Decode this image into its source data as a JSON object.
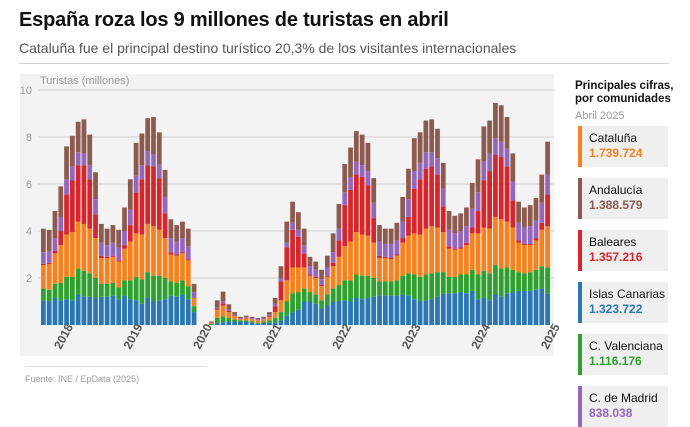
{
  "title": "España roza los 9 millones de turistas en abril",
  "subtitle": "Cataluña fue el principal destino turístico 20,3% de los visitantes internacionales",
  "source": "Fuente: INE / EpData (2025)",
  "sidebar": {
    "heading_line1": "Principales cifras,",
    "heading_line2": "por comunidades",
    "period": "Abril 2025",
    "items": [
      {
        "name": "Cataluña",
        "value": "1.739.724",
        "color": "#f5821f"
      },
      {
        "name": "Andalucía",
        "value": "1.388.579",
        "color": "#8c5a4f"
      },
      {
        "name": "Baleares",
        "value": "1.357.216",
        "color": "#d7262b"
      },
      {
        "name": "Islas Canarias",
        "value": "1.323.722",
        "color": "#2a77b4"
      },
      {
        "name": "C. Valenciana",
        "value": "1.116.176",
        "color": "#2ea02d"
      },
      {
        "name": "C. de Madrid",
        "value": "838.038",
        "color": "#9467bd"
      }
    ]
  },
  "chart_data": {
    "type": "bar",
    "stacked": true,
    "title": "España roza los 9 millones de turistas en abril",
    "ylabel": "Turistas (millones)",
    "xlabel": "",
    "ylim": [
      0,
      10
    ],
    "yticks": [
      2,
      4,
      6,
      8,
      10
    ],
    "grid": true,
    "x_start": "2018-01",
    "x_end": "2025-04",
    "xticks": [
      "2018",
      "2019",
      "2020",
      "2021",
      "2022",
      "2023",
      "2024",
      "2025"
    ],
    "series": [
      {
        "name": "Islas Canarias",
        "color": "#2a77b4",
        "values": [
          1.05,
          1.0,
          1.15,
          1.05,
          1.1,
          1.05,
          1.3,
          1.2,
          1.2,
          1.15,
          1.2,
          1.2,
          1.25,
          1.1,
          1.25,
          1.1,
          1.05,
          0.9,
          1.15,
          1.0,
          1.05,
          1.1,
          1.25,
          1.2,
          1.3,
          1.1,
          0.55,
          0.0,
          0.0,
          0.0,
          0.1,
          0.12,
          0.15,
          0.15,
          0.15,
          0.15,
          0.1,
          0.05,
          0.1,
          0.1,
          0.1,
          0.2,
          0.4,
          0.55,
          0.65,
          1.0,
          1.0,
          0.9,
          0.7,
          0.85,
          1.0,
          1.0,
          1.05,
          1.0,
          1.15,
          1.1,
          1.15,
          1.2,
          1.25,
          1.25,
          1.25,
          1.25,
          1.3,
          1.25,
          1.1,
          1.0,
          1.05,
          1.1,
          1.2,
          1.35,
          1.35,
          1.35,
          1.4,
          1.35,
          1.45,
          1.1,
          1.15,
          1.05,
          1.3,
          1.2,
          1.35,
          1.4,
          1.45,
          1.45,
          1.45,
          1.5,
          1.55,
          1.35
        ]
      },
      {
        "name": "C. Valenciana",
        "color": "#2ea02d",
        "values": [
          0.5,
          0.5,
          0.6,
          0.75,
          0.95,
          1.0,
          1.1,
          1.1,
          1.0,
          0.85,
          0.55,
          0.55,
          0.55,
          0.5,
          0.65,
          0.8,
          1.0,
          1.05,
          1.1,
          1.1,
          1.05,
          0.9,
          0.6,
          0.6,
          0.6,
          0.55,
          0.25,
          0.0,
          0.0,
          0.05,
          0.2,
          0.25,
          0.15,
          0.08,
          0.05,
          0.05,
          0.05,
          0.05,
          0.05,
          0.1,
          0.2,
          0.35,
          0.6,
          0.8,
          0.75,
          0.55,
          0.4,
          0.4,
          0.35,
          0.45,
          0.55,
          0.7,
          0.85,
          0.9,
          1.0,
          1.0,
          0.95,
          0.8,
          0.6,
          0.6,
          0.6,
          0.65,
          0.8,
          0.95,
          1.05,
          1.05,
          1.1,
          1.1,
          1.05,
          0.9,
          0.7,
          0.7,
          0.75,
          0.8,
          0.9,
          1.05,
          1.15,
          1.15,
          1.25,
          1.2,
          1.1,
          0.95,
          0.8,
          0.75,
          0.8,
          0.85,
          0.95,
          1.1
        ]
      },
      {
        "name": "Cataluña",
        "color": "#f5821f",
        "values": [
          1.0,
          1.1,
          1.3,
          1.6,
          1.8,
          1.9,
          2.0,
          2.0,
          1.9,
          1.7,
          1.1,
          1.1,
          1.1,
          1.1,
          1.35,
          1.65,
          1.85,
          1.9,
          2.05,
          2.1,
          1.95,
          1.7,
          1.15,
          1.15,
          1.15,
          1.1,
          0.35,
          0.0,
          0.0,
          0.05,
          0.35,
          0.45,
          0.25,
          0.15,
          0.05,
          0.1,
          0.1,
          0.1,
          0.1,
          0.15,
          0.25,
          0.5,
          0.9,
          1.1,
          1.05,
          0.9,
          0.7,
          0.7,
          0.6,
          0.75,
          0.95,
          1.2,
          1.45,
          1.65,
          1.8,
          1.75,
          1.7,
          1.5,
          1.0,
          1.0,
          0.95,
          1.05,
          1.4,
          1.6,
          1.75,
          1.8,
          1.95,
          2.0,
          1.9,
          1.7,
          1.2,
          1.15,
          1.1,
          1.25,
          1.55,
          1.75,
          1.85,
          1.9,
          2.05,
          2.1,
          1.95,
          1.8,
          1.25,
          1.2,
          1.15,
          1.25,
          1.55,
          1.75
        ]
      },
      {
        "name": "Baleares",
        "color": "#d7262b",
        "values": [
          0.05,
          0.05,
          0.1,
          0.6,
          1.7,
          2.2,
          2.4,
          2.5,
          2.1,
          1.0,
          0.1,
          0.05,
          0.05,
          0.05,
          0.15,
          0.7,
          1.75,
          2.35,
          2.5,
          2.55,
          2.2,
          1.05,
          0.1,
          0.05,
          0.05,
          0.05,
          0.0,
          0.0,
          0.0,
          0.0,
          0.05,
          0.1,
          0.05,
          0.0,
          0.0,
          0.0,
          0.0,
          0.0,
          0.0,
          0.05,
          0.25,
          0.8,
          1.4,
          1.6,
          1.3,
          0.6,
          0.05,
          0.05,
          0.05,
          0.05,
          0.15,
          0.7,
          1.75,
          2.2,
          2.45,
          2.45,
          2.15,
          1.05,
          0.1,
          0.05,
          0.05,
          0.05,
          0.2,
          0.8,
          1.9,
          2.35,
          2.55,
          2.55,
          2.25,
          1.1,
          0.1,
          0.05,
          0.05,
          0.1,
          0.25,
          0.95,
          2.0,
          2.45,
          2.65,
          2.65,
          2.35,
          1.15,
          0.1,
          0.05,
          0.05,
          0.1,
          0.3,
          1.35
        ]
      },
      {
        "name": "C. de Madrid",
        "color": "#9467bd",
        "values": [
          0.5,
          0.5,
          0.55,
          0.6,
          0.65,
          0.6,
          0.55,
          0.5,
          0.6,
          0.65,
          0.55,
          0.5,
          0.55,
          0.55,
          0.6,
          0.65,
          0.7,
          0.6,
          0.6,
          0.5,
          0.6,
          0.7,
          0.6,
          0.55,
          0.6,
          0.55,
          0.25,
          0.0,
          0.0,
          0.0,
          0.05,
          0.1,
          0.08,
          0.05,
          0.05,
          0.05,
          0.05,
          0.05,
          0.05,
          0.05,
          0.1,
          0.15,
          0.2,
          0.3,
          0.3,
          0.35,
          0.35,
          0.3,
          0.25,
          0.35,
          0.45,
          0.5,
          0.55,
          0.55,
          0.55,
          0.5,
          0.6,
          0.65,
          0.6,
          0.55,
          0.6,
          0.6,
          0.7,
          0.75,
          0.75,
          0.7,
          0.7,
          0.6,
          0.7,
          0.75,
          0.7,
          0.65,
          0.7,
          0.7,
          0.8,
          0.8,
          0.8,
          0.75,
          0.7,
          0.65,
          0.75,
          0.8,
          0.75,
          0.7,
          0.75,
          0.75,
          0.85,
          0.85
        ]
      },
      {
        "name": "Andalucía",
        "color": "#8c5a4f",
        "values": [
          1.0,
          0.9,
          1.15,
          1.3,
          1.4,
          1.3,
          1.3,
          1.45,
          1.3,
          1.15,
          0.8,
          0.7,
          0.75,
          0.75,
          1.0,
          1.3,
          1.4,
          1.35,
          1.4,
          1.6,
          1.35,
          1.15,
          0.8,
          0.7,
          0.7,
          0.75,
          0.35,
          0.0,
          0.0,
          0.05,
          0.3,
          0.4,
          0.2,
          0.12,
          0.05,
          0.05,
          0.05,
          0.05,
          0.05,
          0.1,
          0.25,
          0.5,
          0.9,
          0.9,
          0.75,
          0.7,
          0.4,
          0.35,
          0.4,
          0.5,
          0.8,
          1.05,
          1.2,
          1.25,
          1.3,
          1.3,
          1.2,
          1.05,
          0.7,
          0.65,
          0.65,
          0.75,
          1.05,
          1.3,
          1.4,
          1.3,
          1.35,
          1.4,
          1.25,
          1.1,
          0.8,
          0.75,
          0.75,
          0.8,
          1.1,
          1.4,
          1.5,
          1.4,
          1.5,
          1.55,
          1.35,
          1.2,
          0.9,
          0.85,
          0.9,
          0.95,
          1.2,
          1.4
        ]
      }
    ]
  }
}
